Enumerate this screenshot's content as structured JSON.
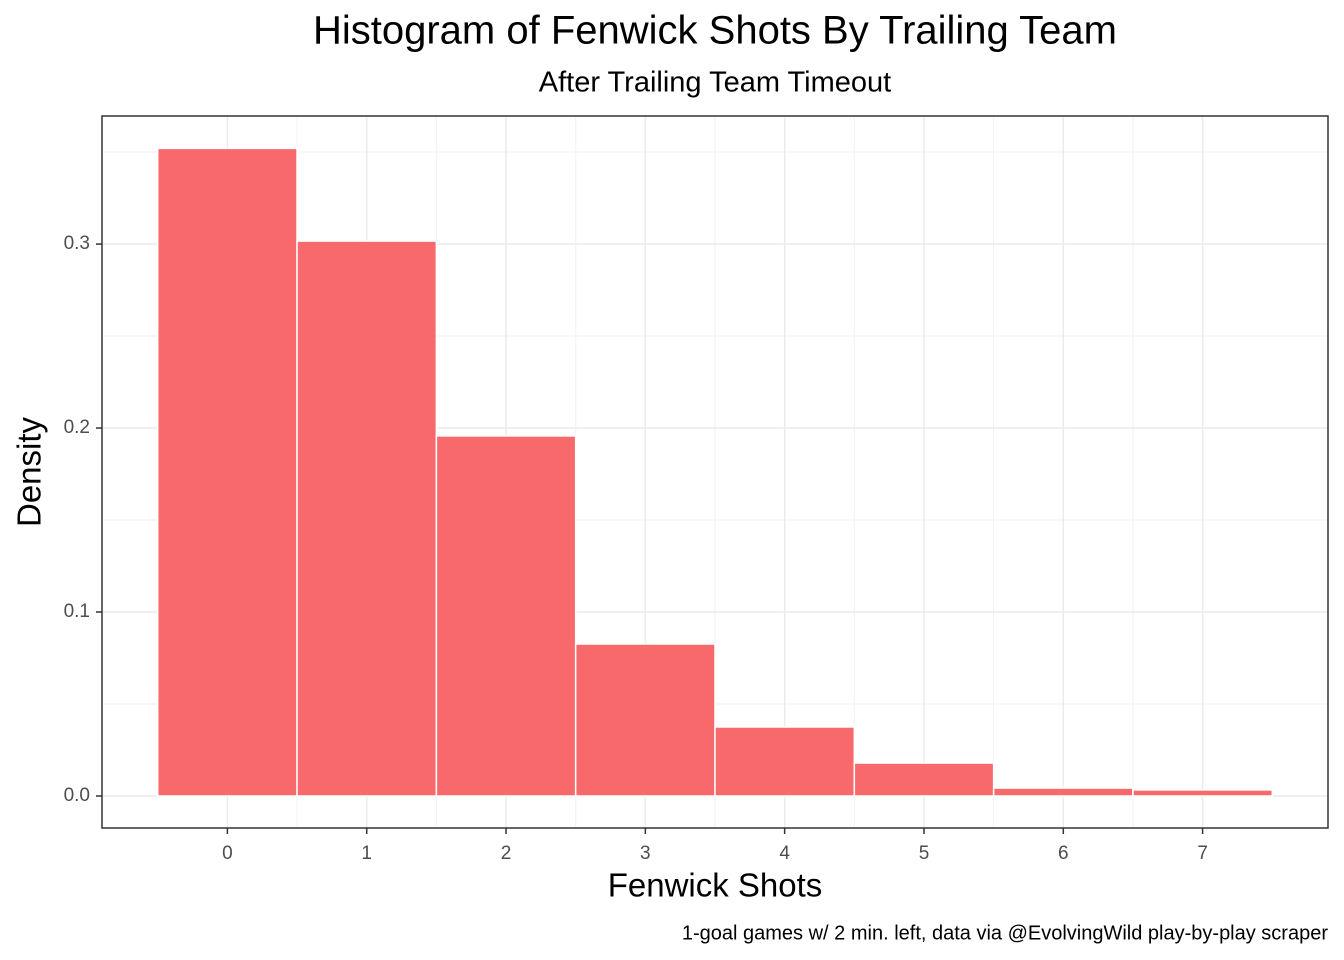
{
  "chart_data": {
    "type": "histogram",
    "title": "Histogram of Fenwick Shots By Trailing Team",
    "subtitle": "After Trailing Team Timeout",
    "x_label": "Fenwick Shots",
    "y_label": "Density",
    "caption": "1-goal games w/ 2 min. left, data via @EvolvingWild play-by-play scraper",
    "bins": [
      -0.5,
      0.5,
      1.5,
      2.5,
      3.5,
      4.5,
      5.5,
      6.5,
      7.5
    ],
    "values": [
      0.352,
      0.3016,
      0.1957,
      0.0826,
      0.0375,
      0.0179,
      0.0043,
      0.0033
    ],
    "color": "#f8696b",
    "xlim": [
      -0.9,
      7.9
    ],
    "ylim": [
      -0.0174,
      0.3696
    ],
    "xticks": [
      0,
      1,
      2,
      3,
      4,
      5,
      6,
      7
    ],
    "yticks": [
      {
        "value": 0,
        "label": "0.0"
      },
      0.1,
      0.2,
      0.3
    ],
    "grid": true
  }
}
